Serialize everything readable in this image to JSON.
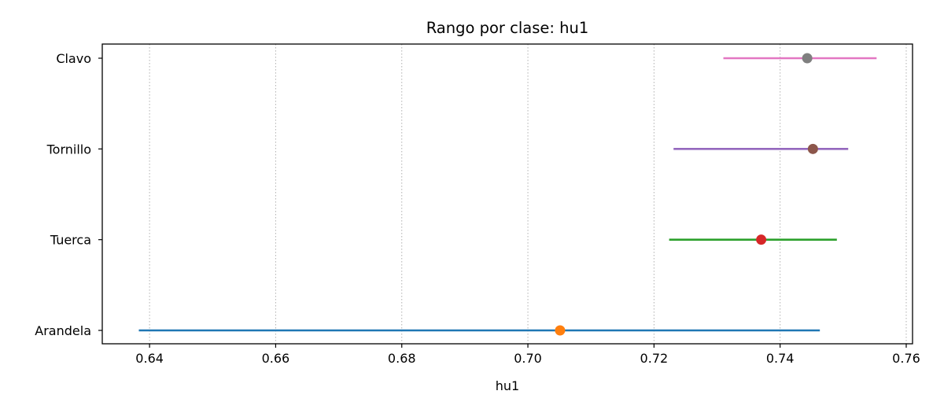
{
  "chart_data": {
    "type": "range-dot",
    "title": "Rango por clase: hu1",
    "xlabel": "hu1",
    "ylabel": "",
    "xlim": [
      0.6325,
      0.761
    ],
    "xticks": [
      0.64,
      0.66,
      0.68,
      0.7,
      0.72,
      0.74,
      0.76
    ],
    "xtick_labels": [
      "0.64",
      "0.66",
      "0.68",
      "0.70",
      "0.72",
      "0.74",
      "0.76"
    ],
    "grid": "x-dotted",
    "categories": [
      "Arandela",
      "Tuerca",
      "Tornillo",
      "Clavo"
    ],
    "series": [
      {
        "category": "Arandela",
        "min": 0.6383,
        "max": 0.7463,
        "center": 0.7051,
        "line_color": "#1f77b4",
        "dot_color": "#ff7f0e"
      },
      {
        "category": "Tuerca",
        "min": 0.7224,
        "max": 0.749,
        "center": 0.737,
        "line_color": "#2ca02c",
        "dot_color": "#d62728"
      },
      {
        "category": "Tornillo",
        "min": 0.7231,
        "max": 0.7508,
        "center": 0.7452,
        "line_color": "#9467bd",
        "dot_color": "#8c564b"
      },
      {
        "category": "Clavo",
        "min": 0.731,
        "max": 0.7553,
        "center": 0.7443,
        "line_color": "#e377c2",
        "dot_color": "#7f7f7f"
      }
    ]
  }
}
